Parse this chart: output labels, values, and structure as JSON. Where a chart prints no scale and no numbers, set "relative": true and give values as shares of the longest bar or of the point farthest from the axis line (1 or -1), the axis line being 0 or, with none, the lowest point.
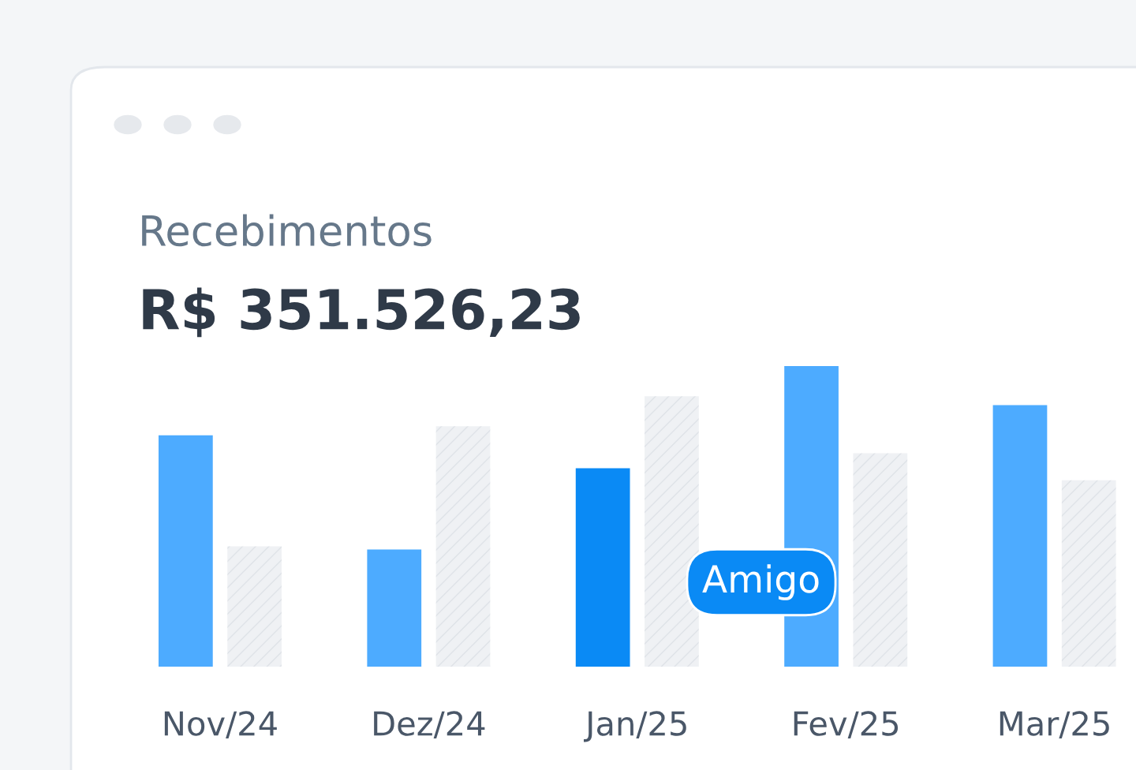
{
  "chart_data": {
    "type": "bar",
    "title": "Recebimentos",
    "subtitle": "R$ 351.526,23",
    "relative": true,
    "categories": [
      "Nov/24",
      "Dez/24",
      "Jan/25",
      "Fev/25",
      "Mar/25"
    ],
    "series": [
      {
        "colors": [
          "#4dabff",
          "#4dabff",
          "#0a8af5",
          "#4dabff",
          "#4dabff"
        ],
        "values": [
          0.77,
          0.39,
          0.66,
          1.0,
          0.87
        ]
      },
      {
        "color": "#eff1f4",
        "values": [
          0.4,
          0.8,
          0.9,
          0.71,
          0.62
        ]
      }
    ],
    "annotations": [
      "Amigo"
    ],
    "grid": false,
    "legend": false
  }
}
